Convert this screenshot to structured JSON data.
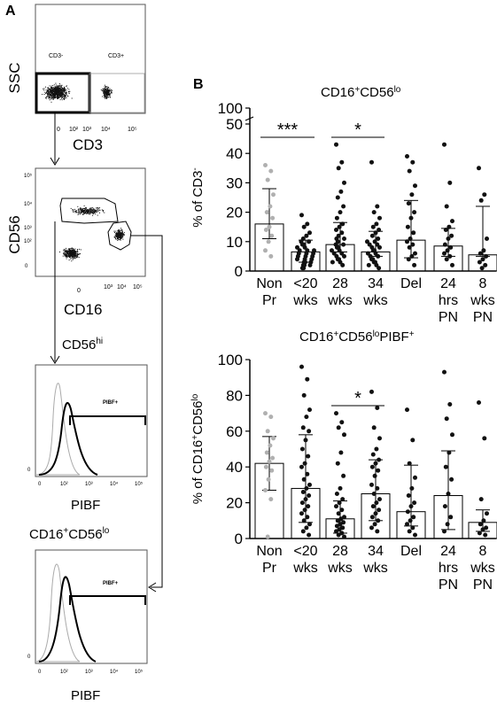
{
  "panel_labels": {
    "a": "A",
    "b": "B"
  },
  "left_panels": {
    "p1": {
      "ylabel": "SSC",
      "xlabel": "CD3",
      "gate_neg": "CD3-",
      "gate_pos": "CD3+",
      "ticks": [
        "0",
        "10²",
        "10³",
        "10⁴",
        "10⁵"
      ]
    },
    "p2": {
      "ylabel": "CD56",
      "xlabel": "CD16",
      "xticks": [
        "0",
        "10³",
        "10⁴",
        "10⁵"
      ],
      "yticks": [
        "10⁵",
        "10⁴",
        "10³",
        "10²",
        "0"
      ]
    },
    "p3": {
      "title": "CD56",
      "title_sup": "hi",
      "xlabel": "PIBF",
      "gate": "PIBF+",
      "ticks": [
        "0",
        "10²",
        "10³",
        "10⁴",
        "10⁵"
      ],
      "zero": "0"
    },
    "p4": {
      "title": "CD16",
      "title_sup1": "+",
      "title_mid": "CD56",
      "title_sup2": "lo",
      "xlabel": "PIBF",
      "gate": "PIBF+",
      "ticks": [
        "0",
        "10²",
        "10³",
        "10⁴",
        "10⁵"
      ],
      "zero": "0"
    }
  },
  "chart_data": [
    {
      "type": "scatter",
      "title": "CD16+CD56lo",
      "title_parts": [
        "CD16",
        "+",
        "CD56",
        "lo"
      ],
      "ylabel": "% of CD3-",
      "ylabel_parts": [
        "% of CD3",
        "-"
      ],
      "ylim": [
        0,
        50
      ],
      "broken_axis_top": "100",
      "yticks": [
        "0",
        "10",
        "20",
        "30",
        "40",
        "50"
      ],
      "categories": [
        [
          "Non",
          "Pr"
        ],
        [
          "<20",
          "wks"
        ],
        [
          "28",
          "wks"
        ],
        [
          "34",
          "wks"
        ],
        [
          "Del",
          ""
        ],
        [
          "24",
          "hrs",
          "PN"
        ],
        [
          "8",
          "wks",
          "PN"
        ]
      ],
      "bars": [
        16,
        6.5,
        9,
        6.5,
        10.5,
        8.5,
        5.5
      ],
      "err_low": [
        11,
        3,
        6.5,
        5,
        4.5,
        5,
        5
      ],
      "err_high": [
        28,
        10.5,
        16.5,
        13.5,
        24,
        14.5,
        22
      ],
      "point_colors": [
        "#b0b0b0",
        "#111111",
        "#111111",
        "#111111",
        "#111111",
        "#111111",
        "#111111"
      ],
      "points": [
        [
          36,
          34,
          31,
          26,
          22,
          20,
          18,
          15,
          14,
          12,
          10,
          7,
          5
        ],
        [
          19,
          16,
          15,
          13,
          12,
          11,
          10,
          10,
          9,
          9,
          8,
          8,
          7,
          7,
          7,
          6,
          6,
          6,
          5,
          5,
          5,
          4,
          4,
          4,
          3,
          3,
          3,
          2,
          2,
          2,
          1,
          1
        ],
        [
          43,
          37,
          35,
          30,
          27,
          25,
          22,
          20,
          18,
          16,
          15,
          14,
          13,
          12,
          11,
          11,
          10,
          9,
          9,
          8,
          8,
          7,
          7,
          6,
          6,
          5,
          5,
          4,
          4,
          3,
          3,
          2
        ],
        [
          37,
          22,
          20,
          18,
          16,
          15,
          14,
          13,
          12,
          11,
          10,
          10,
          9,
          9,
          8,
          8,
          7,
          7,
          6,
          6,
          5,
          5,
          4,
          4,
          3,
          3,
          2,
          2,
          1
        ],
        [
          39,
          37,
          34,
          29,
          26,
          23,
          20,
          18,
          15,
          13,
          11,
          10,
          9,
          8,
          6,
          5,
          4,
          2
        ],
        [
          43,
          30,
          22,
          17,
          15,
          14,
          12,
          11,
          9,
          8,
          7,
          6,
          5,
          4,
          2
        ],
        [
          35,
          26,
          24,
          11,
          7,
          6,
          5,
          4,
          3,
          2,
          1
        ]
      ],
      "annotations": [
        {
          "text": "***",
          "from": 0,
          "to": 1
        },
        {
          "text": "*",
          "from": 2,
          "to": 3
        }
      ]
    },
    {
      "type": "scatter",
      "title": "CD16+CD56loPIBF+",
      "title_parts": [
        "CD16",
        "+",
        "CD56",
        "lo",
        "PIBF",
        "+"
      ],
      "ylabel": "% of CD16+CD56lo",
      "ylabel_parts": [
        "% of CD16",
        "+",
        "CD56",
        "lo"
      ],
      "ylim": [
        0,
        100
      ],
      "yticks": [
        "0",
        "20",
        "40",
        "60",
        "80",
        "100"
      ],
      "categories": [
        [
          "Non",
          "Pr"
        ],
        [
          "<20",
          "wks"
        ],
        [
          "28",
          "wks"
        ],
        [
          "34",
          "wks"
        ],
        [
          "Del",
          ""
        ],
        [
          "24",
          "hrs",
          "PN"
        ],
        [
          "8",
          "wks",
          "PN"
        ]
      ],
      "bars": [
        42,
        28,
        11,
        25,
        15,
        24,
        9
      ],
      "err_low": [
        27,
        9,
        3,
        10,
        7,
        5,
        4
      ],
      "err_high": [
        57,
        58,
        21,
        44,
        41,
        49,
        16
      ],
      "point_colors": [
        "#b0b0b0",
        "#111111",
        "#111111",
        "#111111",
        "#111111",
        "#111111",
        "#111111"
      ],
      "points": [
        [
          70,
          68,
          60,
          56,
          52,
          48,
          45,
          43,
          40,
          38,
          33,
          27,
          22,
          1
        ],
        [
          96,
          89,
          80,
          72,
          68,
          62,
          60,
          55,
          50,
          46,
          42,
          40,
          36,
          33,
          30,
          28,
          26,
          24,
          22,
          20,
          18,
          16,
          14,
          12,
          10,
          8,
          6,
          4,
          2
        ],
        [
          70,
          65,
          62,
          58,
          48,
          42,
          35,
          28,
          25,
          22,
          20,
          18,
          16,
          14,
          12,
          11,
          10,
          9,
          8,
          7,
          6,
          5,
          4,
          3,
          2,
          1
        ],
        [
          82,
          73,
          62,
          56,
          50,
          47,
          44,
          42,
          40,
          38,
          35,
          30,
          28,
          25,
          22,
          20,
          18,
          16,
          14,
          12,
          10,
          8,
          6,
          4
        ],
        [
          72,
          55,
          42,
          34,
          28,
          24,
          20,
          18,
          15,
          12,
          10,
          8,
          6,
          4,
          2
        ],
        [
          93,
          75,
          67,
          58,
          48,
          40,
          33,
          25,
          18,
          12,
          8,
          4
        ],
        [
          76,
          56,
          22,
          14,
          10,
          8,
          6,
          5,
          3,
          2
        ]
      ],
      "annotations": [
        {
          "text": "*",
          "from": 2,
          "to": 3
        }
      ]
    }
  ]
}
